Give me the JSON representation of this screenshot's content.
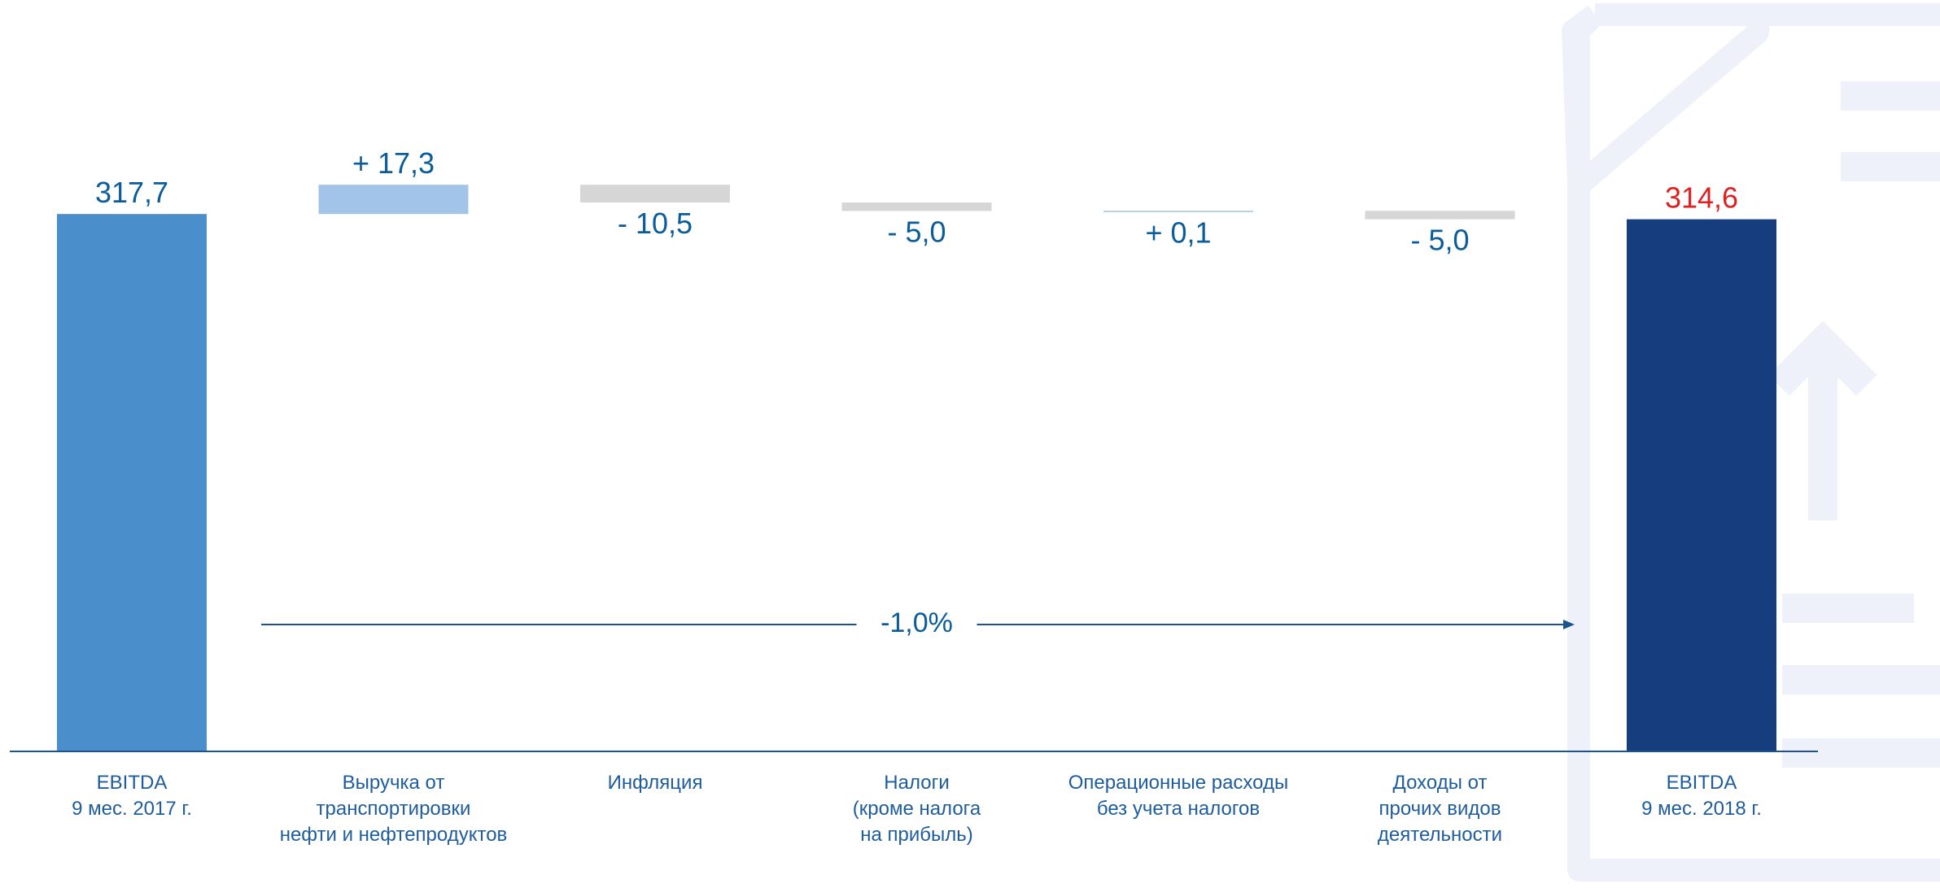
{
  "colors": {
    "start_bar": "#4A8ECB",
    "end_bar": "#163E7F",
    "increase_bar": "#A2C4E8",
    "decrease_bar": "#D6D6D6",
    "value_text": "#0B5C9A",
    "end_value_text": "#E02020",
    "category_text": "#1E5C9C",
    "axis_line": "#1A5490",
    "watermark": "#EEF1FA"
  },
  "chart_data": {
    "type": "bar",
    "subtype": "waterfall",
    "title": "",
    "xlabel": "",
    "ylabel": "",
    "ylim": [
      0,
      325
    ],
    "grid": false,
    "legend": "none",
    "categories": [
      [
        "EBITDA",
        "9 мес. 2017 г."
      ],
      [
        "Выручка от",
        "транспортировки",
        "нефти и нефтепродуктов"
      ],
      [
        "Инфляция"
      ],
      [
        "Налоги",
        "(кроме налога",
        "на прибыль)"
      ],
      [
        "Операционные расходы",
        "без учета налогов"
      ],
      [
        "Доходы от",
        "прочих видов",
        "деятельности"
      ],
      [
        "EBITDA",
        "9 мес. 2018 г."
      ]
    ],
    "values": [
      317.7,
      17.3,
      -10.5,
      -5.0,
      0.1,
      -5.0,
      314.6
    ],
    "kinds": [
      "total",
      "change",
      "change",
      "change",
      "change",
      "change",
      "total"
    ],
    "data_labels": [
      "317,7",
      "+ 17,3",
      "- 10,5",
      "- 5,0",
      "+ 0,1",
      "- 5,0",
      "314,6"
    ],
    "annotation": {
      "text": "-1,0%",
      "from_category": 0,
      "to_category": 6
    }
  }
}
